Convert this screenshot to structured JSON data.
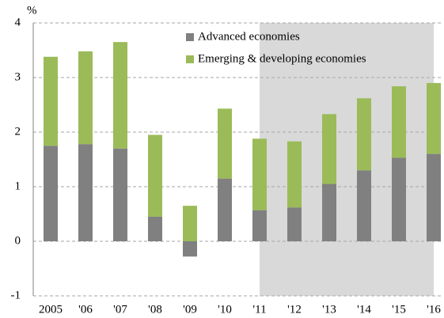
{
  "chart_data": {
    "type": "stacked_bar",
    "y_label": "%",
    "categories": [
      "2005",
      "'06",
      "'07",
      "'08",
      "'09",
      "'10",
      "'11",
      "'12",
      "'13",
      "'14",
      "'15",
      "'16"
    ],
    "series": [
      {
        "name": "Advanced economies",
        "color": "#808080",
        "values": [
          1.75,
          1.78,
          1.7,
          0.45,
          -0.28,
          1.15,
          0.57,
          0.62,
          1.05,
          1.3,
          1.53,
          1.6
        ]
      },
      {
        "name": "Emerging & developing economies",
        "color": "#9bbb59",
        "values": [
          1.63,
          1.7,
          1.95,
          1.5,
          0.65,
          1.28,
          1.31,
          1.21,
          1.28,
          1.32,
          1.31,
          1.3
        ]
      }
    ],
    "ylim": [
      -1,
      4
    ],
    "yticks": [
      -1,
      0,
      1,
      2,
      3,
      4
    ],
    "grid": true
  }
}
